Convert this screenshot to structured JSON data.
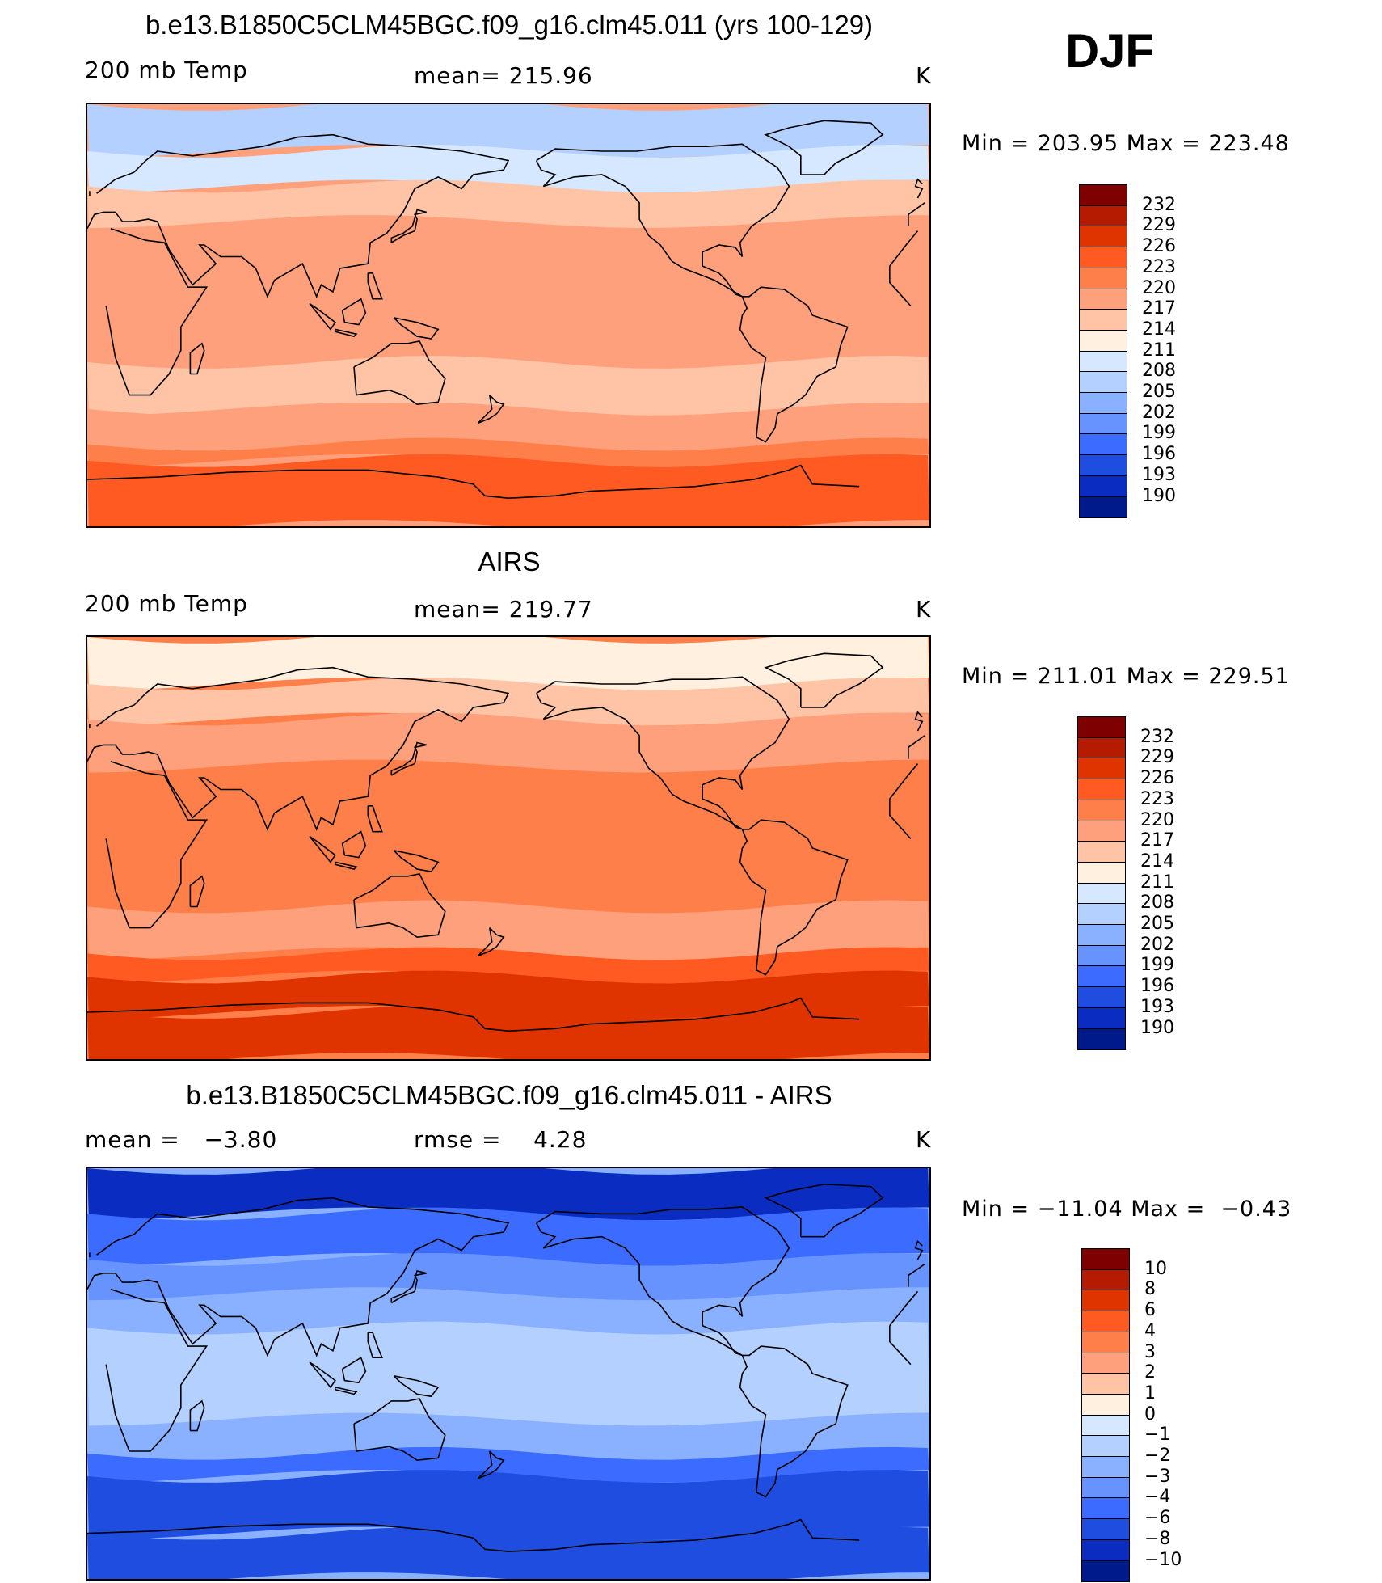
{
  "season": "DJF",
  "panels": [
    {
      "title": "b.e13.B1850C5CLM45BGC.f09_g16.clm45.011 (yrs 100-129)",
      "left_label": "200 mb Temp",
      "center_label": "mean= 215.96",
      "units": "K",
      "minmax": "Min = 203.95 Max = 223.48"
    },
    {
      "title": "AIRS",
      "left_label": "200 mb Temp",
      "center_label": "mean= 219.77",
      "units": "K",
      "minmax": "Min = 211.01 Max = 229.51"
    },
    {
      "title": "b.e13.B1850C5CLM45BGC.f09_g16.clm45.011 - AIRS",
      "left_label": "mean =   −3.80",
      "center_label": "rmse =    4.28",
      "units": "K",
      "minmax": "Min = −11.04 Max =  −0.43"
    }
  ],
  "colorbars": {
    "temperature": {
      "labels": [
        "232",
        "229",
        "226",
        "223",
        "220",
        "217",
        "214",
        "211",
        "208",
        "205",
        "202",
        "199",
        "196",
        "193",
        "190"
      ],
      "colors": [
        "#7f0000",
        "#b51b00",
        "#df3300",
        "#ff5a21",
        "#ff7f4a",
        "#ffa07c",
        "#ffc4a6",
        "#fff0df",
        "#d6e8ff",
        "#b3d0ff",
        "#8ab1ff",
        "#6793ff",
        "#3b6cff",
        "#1e4de0",
        "#0a2cc0",
        "#001a8c"
      ]
    },
    "difference": {
      "labels": [
        "10",
        "8",
        "6",
        "4",
        "3",
        "2",
        "1",
        "0",
        "−1",
        "−2",
        "−3",
        "−4",
        "−6",
        "−8",
        "−10"
      ],
      "colors": [
        "#7f0000",
        "#b51b00",
        "#df3300",
        "#ff5a21",
        "#ff7f4a",
        "#ffa07c",
        "#ffc4a6",
        "#fff0df",
        "#d6e8ff",
        "#b3d0ff",
        "#8ab1ff",
        "#6793ff",
        "#3b6cff",
        "#1e4de0",
        "#0a2cc0",
        "#001a8c"
      ]
    }
  },
  "map_fields": {
    "panel1": {
      "base": "#ffa07c",
      "bands": [
        {
          "lat": [
            90,
            70
          ],
          "color": "#b3d0ff"
        },
        {
          "lat": [
            70,
            55
          ],
          "color": "#d6e8ff"
        },
        {
          "lat": [
            55,
            40
          ],
          "color": "#ffc4a6"
        },
        {
          "lat": [
            -20,
            -40
          ],
          "color": "#ffc4a6"
        },
        {
          "lat": [
            -40,
            -55
          ],
          "color": "#ffa07c"
        },
        {
          "lat": [
            -55,
            -62
          ],
          "color": "#ff7f4a"
        },
        {
          "lat": [
            -62,
            -90
          ],
          "color": "#ff5a21"
        }
      ]
    },
    "panel2": {
      "base": "#ff7f4a",
      "bands": [
        {
          "lat": [
            90,
            70
          ],
          "color": "#fff0df"
        },
        {
          "lat": [
            70,
            55
          ],
          "color": "#ffc4a6"
        },
        {
          "lat": [
            55,
            35
          ],
          "color": "#ffa07c"
        },
        {
          "lat": [
            -25,
            -45
          ],
          "color": "#ffa07c"
        },
        {
          "lat": [
            -45,
            -55
          ],
          "color": "#ff5a21"
        },
        {
          "lat": [
            -55,
            -70
          ],
          "color": "#df3300"
        },
        {
          "lat": [
            -70,
            -90
          ],
          "color": "#df3300"
        }
      ]
    },
    "panel3": {
      "base": "#8ab1ff",
      "bands": [
        {
          "lat": [
            90,
            70
          ],
          "color": "#0a2cc0"
        },
        {
          "lat": [
            70,
            50
          ],
          "color": "#3b6cff"
        },
        {
          "lat": [
            50,
            35
          ],
          "color": "#6793ff"
        },
        {
          "lat": [
            20,
            -20
          ],
          "color": "#b3d0ff"
        },
        {
          "lat": [
            -35,
            -45
          ],
          "color": "#3b6cff"
        },
        {
          "lat": [
            -45,
            -70
          ],
          "color": "#1e4de0"
        },
        {
          "lat": [
            -70,
            -90
          ],
          "color": "#1e4de0"
        }
      ]
    }
  }
}
